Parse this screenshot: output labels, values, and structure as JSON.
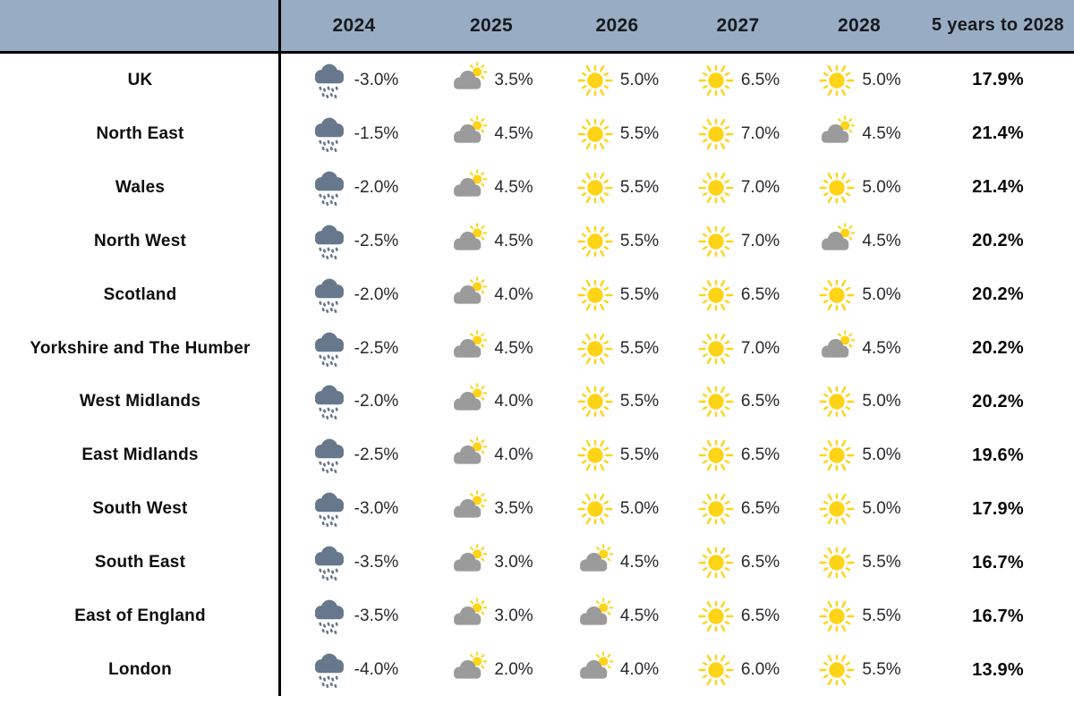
{
  "colors": {
    "header_bg": "#98ADC3",
    "rain_cloud": "#67788C",
    "cloud_gray": "#9B9B9B",
    "sun_yellow": "#FFD316",
    "divider": "#000000"
  },
  "chart_data": {
    "type": "table",
    "columns": [
      "2024",
      "2025",
      "2026",
      "2027",
      "2028",
      "5 years to 2028"
    ],
    "rows": [
      {
        "region": "UK",
        "cells": [
          {
            "icon": "rain-cloud",
            "value": "-3.0%"
          },
          {
            "icon": "cloud-sun",
            "value": "3.5%"
          },
          {
            "icon": "sun",
            "value": "5.0%"
          },
          {
            "icon": "sun",
            "value": "6.5%"
          },
          {
            "icon": "sun",
            "value": "5.0%"
          }
        ],
        "total": "17.9%"
      },
      {
        "region": "North East",
        "cells": [
          {
            "icon": "rain-cloud",
            "value": "-1.5%"
          },
          {
            "icon": "cloud-sun",
            "value": "4.5%"
          },
          {
            "icon": "sun",
            "value": "5.5%"
          },
          {
            "icon": "sun",
            "value": "7.0%"
          },
          {
            "icon": "cloud-sun",
            "value": "4.5%"
          }
        ],
        "total": "21.4%"
      },
      {
        "region": "Wales",
        "cells": [
          {
            "icon": "rain-cloud",
            "value": "-2.0%"
          },
          {
            "icon": "cloud-sun",
            "value": "4.5%"
          },
          {
            "icon": "sun",
            "value": "5.5%"
          },
          {
            "icon": "sun",
            "value": "7.0%"
          },
          {
            "icon": "sun",
            "value": "5.0%"
          }
        ],
        "total": "21.4%"
      },
      {
        "region": "North West",
        "cells": [
          {
            "icon": "rain-cloud",
            "value": "-2.5%"
          },
          {
            "icon": "cloud-sun",
            "value": "4.5%"
          },
          {
            "icon": "sun",
            "value": "5.5%"
          },
          {
            "icon": "sun",
            "value": "7.0%"
          },
          {
            "icon": "cloud-sun",
            "value": "4.5%"
          }
        ],
        "total": "20.2%"
      },
      {
        "region": "Scotland",
        "cells": [
          {
            "icon": "rain-cloud",
            "value": "-2.0%"
          },
          {
            "icon": "cloud-sun",
            "value": "4.0%"
          },
          {
            "icon": "sun",
            "value": "5.5%"
          },
          {
            "icon": "sun",
            "value": "6.5%"
          },
          {
            "icon": "sun",
            "value": "5.0%"
          }
        ],
        "total": "20.2%"
      },
      {
        "region": "Yorkshire and The Humber",
        "cells": [
          {
            "icon": "rain-cloud",
            "value": "-2.5%"
          },
          {
            "icon": "cloud-sun",
            "value": "4.5%"
          },
          {
            "icon": "sun",
            "value": "5.5%"
          },
          {
            "icon": "sun",
            "value": "7.0%"
          },
          {
            "icon": "cloud-sun",
            "value": "4.5%"
          }
        ],
        "total": "20.2%"
      },
      {
        "region": "West Midlands",
        "cells": [
          {
            "icon": "rain-cloud",
            "value": "-2.0%"
          },
          {
            "icon": "cloud-sun",
            "value": "4.0%"
          },
          {
            "icon": "sun",
            "value": "5.5%"
          },
          {
            "icon": "sun",
            "value": "6.5%"
          },
          {
            "icon": "sun",
            "value": "5.0%"
          }
        ],
        "total": "20.2%"
      },
      {
        "region": "East Midlands",
        "cells": [
          {
            "icon": "rain-cloud",
            "value": "-2.5%"
          },
          {
            "icon": "cloud-sun",
            "value": "4.0%"
          },
          {
            "icon": "sun",
            "value": "5.5%"
          },
          {
            "icon": "sun",
            "value": "6.5%"
          },
          {
            "icon": "sun",
            "value": "5.0%"
          }
        ],
        "total": "19.6%"
      },
      {
        "region": "South West",
        "cells": [
          {
            "icon": "rain-cloud",
            "value": "-3.0%"
          },
          {
            "icon": "cloud-sun",
            "value": "3.5%"
          },
          {
            "icon": "sun",
            "value": "5.0%"
          },
          {
            "icon": "sun",
            "value": "6.5%"
          },
          {
            "icon": "sun",
            "value": "5.0%"
          }
        ],
        "total": "17.9%"
      },
      {
        "region": "South East",
        "cells": [
          {
            "icon": "rain-cloud",
            "value": "-3.5%"
          },
          {
            "icon": "cloud-sun",
            "value": "3.0%"
          },
          {
            "icon": "cloud-sun",
            "value": "4.5%"
          },
          {
            "icon": "sun",
            "value": "6.5%"
          },
          {
            "icon": "sun",
            "value": "5.5%"
          }
        ],
        "total": "16.7%"
      },
      {
        "region": "East of England",
        "cells": [
          {
            "icon": "rain-cloud",
            "value": "-3.5%"
          },
          {
            "icon": "cloud-sun",
            "value": "3.0%"
          },
          {
            "icon": "cloud-sun",
            "value": "4.5%"
          },
          {
            "icon": "sun",
            "value": "6.5%"
          },
          {
            "icon": "sun",
            "value": "5.5%"
          }
        ],
        "total": "16.7%"
      },
      {
        "region": "London",
        "cells": [
          {
            "icon": "rain-cloud",
            "value": "-4.0%"
          },
          {
            "icon": "cloud-sun",
            "value": "2.0%"
          },
          {
            "icon": "cloud-sun",
            "value": "4.0%"
          },
          {
            "icon": "sun",
            "value": "6.0%"
          },
          {
            "icon": "sun",
            "value": "5.5%"
          }
        ],
        "total": "13.9%"
      }
    ]
  }
}
